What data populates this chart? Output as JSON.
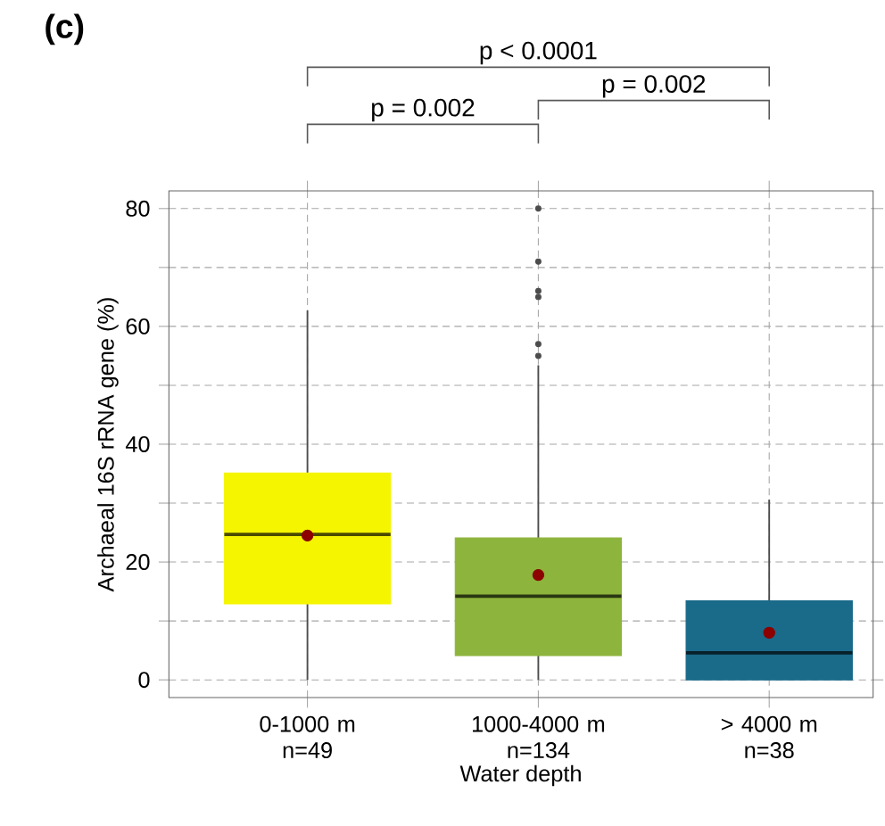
{
  "chart_data": {
    "type": "box",
    "xlabel": "Water depth",
    "ylabel": "Archaeal 16S rRNA gene (%)",
    "categories": [
      "0-1000 m\nn=49",
      "1000-4000 m\nn=134",
      "> 4000 m\nn=38"
    ],
    "colors": [
      "#f5f500",
      "#8db43c",
      "#1a6a8a"
    ],
    "boxes": [
      {
        "low": 0,
        "q1": 12.9,
        "median": 24.7,
        "q3": 35.1,
        "high": 62.7,
        "mean": 24.5
      },
      {
        "low": 0,
        "q1": 4.1,
        "median": 14.2,
        "q3": 24.1,
        "high": 53.4,
        "mean": 17.8,
        "outliers": [
          55,
          57,
          65,
          66,
          71,
          80
        ]
      },
      {
        "low": 0,
        "q1": 0,
        "median": 4.6,
        "q3": 13.4,
        "high": 30.6,
        "mean": 8
      }
    ],
    "ylim": [
      -3,
      83
    ],
    "yticks": [
      0,
      {
        "value": 10,
        "label": null
      },
      20,
      {
        "value": 30,
        "label": null
      },
      40,
      {
        "value": 50,
        "label": null
      },
      60,
      {
        "value": 70,
        "label": null
      },
      80
    ],
    "grid": true,
    "annotations": [
      "(c)",
      "p < 0.0001",
      "p = 0.002",
      "p = 0.002"
    ]
  }
}
